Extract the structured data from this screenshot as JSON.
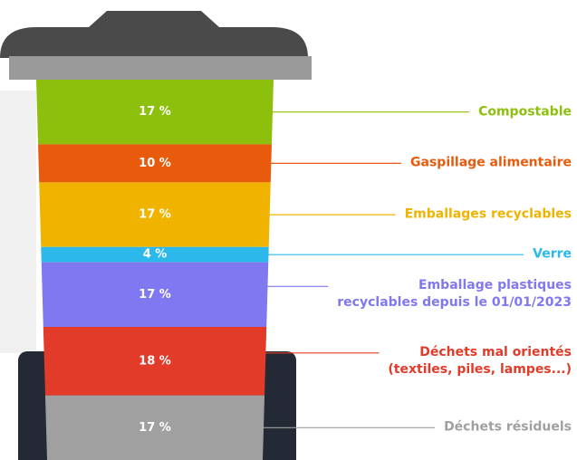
{
  "chart_data": {
    "type": "stacked",
    "categories": [
      "Compostable",
      "Gaspillage alimentaire",
      "Emballages recyclables",
      "Verre",
      "Emballage plastiques\nrecyclables depuis le 01/01/2023",
      "Déchets mal orientés\n(textiles, piles, lampes...)",
      "Déchets résiduels"
    ],
    "values": [
      17,
      10,
      17,
      4,
      17,
      18,
      17
    ],
    "value_labels": [
      "17 %",
      "10 %",
      "17 %",
      "4 %",
      "17 %",
      "18 %",
      "17 %"
    ],
    "colors": [
      "#8cc00c",
      "#e85a0c",
      "#f0b400",
      "#2cb8ea",
      "#8078f0",
      "#e23b2a",
      "#a0a0a0"
    ]
  }
}
